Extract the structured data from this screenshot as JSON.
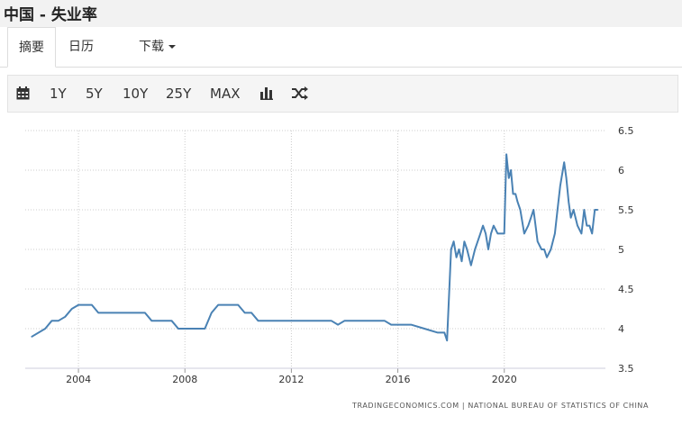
{
  "header": {
    "title": "中国 - 失业率"
  },
  "tabs": [
    {
      "label": "摘要"
    },
    {
      "label": "日历"
    },
    {
      "label": "下载"
    }
  ],
  "toolbar": {
    "ranges": [
      "1Y",
      "5Y",
      "10Y",
      "25Y",
      "MAX"
    ]
  },
  "footer": {
    "source": "TRADINGECONOMICS.COM  |  NATIONAL BUREAU OF STATISTICS OF CHINA"
  },
  "colors": {
    "line": "#4a82b4",
    "grid": "#cccccc",
    "title_bg": "#f2f2f2"
  },
  "icons": [
    "calendar-icon",
    "bar-chart-icon",
    "shuffle-icon",
    "caret-down-icon"
  ],
  "chart_data": {
    "type": "line",
    "title": "",
    "xlabel": "",
    "ylabel": "",
    "x_ticks": [
      "2004",
      "2008",
      "2012",
      "2016",
      "2020"
    ],
    "y_ticks": [
      "3.5",
      "4",
      "4.5",
      "5",
      "5.5",
      "6",
      "6.5"
    ],
    "xlim": [
      2002.0,
      2023.8
    ],
    "ylim": [
      3.5,
      6.5
    ],
    "grid": true,
    "series": [
      {
        "x": [
          2002.25,
          2002.75,
          2003.0,
          2003.25,
          2003.5,
          2003.75,
          2004.0,
          2004.25,
          2004.5,
          2004.75,
          2005.0,
          2005.5,
          2006.0,
          2006.5,
          2006.75,
          2007.0,
          2007.5,
          2007.75,
          2008.0,
          2008.25,
          2008.5,
          2008.75,
          2009.0,
          2009.25,
          2009.5,
          2009.75,
          2010.0,
          2010.25,
          2010.5,
          2010.75,
          2011.0,
          2012.0,
          2013.0,
          2013.25,
          2013.5,
          2013.75,
          2014.0,
          2014.5,
          2015.0,
          2015.25,
          2015.5,
          2015.75,
          2016.0,
          2016.5,
          2017.0,
          2017.5,
          2017.75,
          2017.85,
          2018.0,
          2018.1,
          2018.2,
          2018.3,
          2018.4,
          2018.5,
          2018.6,
          2018.75,
          2018.9,
          2019.0,
          2019.1,
          2019.2,
          2019.3,
          2019.4,
          2019.5,
          2019.6,
          2019.75,
          2019.9,
          2020.0,
          2020.08,
          2020.17,
          2020.25,
          2020.33,
          2020.42,
          2020.5,
          2020.6,
          2020.75,
          2020.9,
          2021.0,
          2021.1,
          2021.25,
          2021.4,
          2021.5,
          2021.6,
          2021.75,
          2021.9,
          2022.0,
          2022.1,
          2022.25,
          2022.33,
          2022.42,
          2022.5,
          2022.6,
          2022.75,
          2022.9,
          2023.0,
          2023.1,
          2023.2,
          2023.3,
          2023.4,
          2023.5
        ],
        "y": [
          3.9,
          4.0,
          4.1,
          4.1,
          4.15,
          4.25,
          4.3,
          4.3,
          4.3,
          4.2,
          4.2,
          4.2,
          4.2,
          4.2,
          4.1,
          4.1,
          4.1,
          4.0,
          4.0,
          4.0,
          4.0,
          4.0,
          4.2,
          4.3,
          4.3,
          4.3,
          4.3,
          4.2,
          4.2,
          4.1,
          4.1,
          4.1,
          4.1,
          4.1,
          4.1,
          4.05,
          4.1,
          4.1,
          4.1,
          4.1,
          4.1,
          4.05,
          4.05,
          4.05,
          4.0,
          3.95,
          3.95,
          3.85,
          5.0,
          5.1,
          4.9,
          5.0,
          4.85,
          5.1,
          5.0,
          4.8,
          5.0,
          5.1,
          5.2,
          5.3,
          5.2,
          5.0,
          5.2,
          5.3,
          5.2,
          5.2,
          5.2,
          6.2,
          5.9,
          6.0,
          5.7,
          5.7,
          5.6,
          5.5,
          5.2,
          5.3,
          5.4,
          5.5,
          5.1,
          5.0,
          5.0,
          4.9,
          5.0,
          5.2,
          5.5,
          5.8,
          6.1,
          5.9,
          5.6,
          5.4,
          5.5,
          5.3,
          5.2,
          5.5,
          5.3,
          5.3,
          5.2,
          5.5,
          5.5
        ]
      }
    ]
  }
}
